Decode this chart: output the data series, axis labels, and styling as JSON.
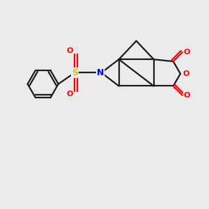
{
  "background_color": "#ebebeb",
  "bond_color": "#1a1a1a",
  "N_color": "#0000ff",
  "O_color": "#ff0000",
  "S_color": "#cccc00",
  "figsize": [
    3.0,
    3.0
  ],
  "dpi": 100,
  "xlim": [
    0,
    10
  ],
  "ylim": [
    0,
    10
  ]
}
